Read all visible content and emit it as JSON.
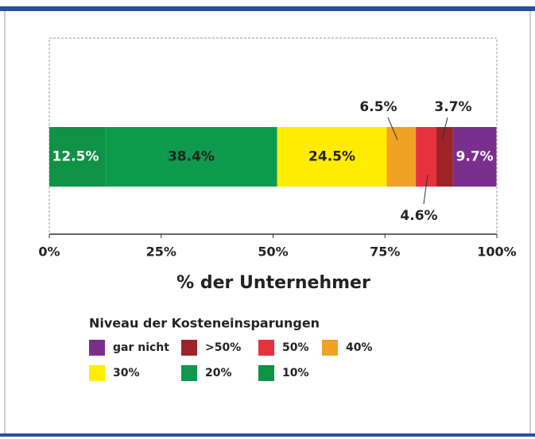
{
  "chart_data": {
    "type": "stacked_bar_horizontal",
    "xlabel": "% der Unternehmer",
    "legend_title": "Niveau der Kosteneinsparungen",
    "xlim": [
      0,
      100
    ],
    "xticks": [
      {
        "value": 0,
        "label": "0%"
      },
      {
        "value": 25,
        "label": "25%"
      },
      {
        "value": 50,
        "label": "50%"
      },
      {
        "value": 75,
        "label": "75%"
      },
      {
        "value": 100,
        "label": "100%"
      }
    ],
    "series": [
      {
        "name": "10%",
        "color": "#0f9146",
        "values": [
          12.5
        ],
        "value_labels": [
          "12.5%"
        ]
      },
      {
        "name": "20%",
        "color": "#0e9a4c",
        "values": [
          38.4
        ],
        "value_labels": [
          "38.4%"
        ]
      },
      {
        "name": "30%",
        "color": "#ffec00",
        "values": [
          24.5
        ],
        "value_labels": [
          "24.5%"
        ]
      },
      {
        "name": "40%",
        "color": "#f0a224",
        "values": [
          6.5
        ],
        "value_labels": [
          "6.5%"
        ]
      },
      {
        "name": "50%",
        "color": "#e7313c",
        "values": [
          4.6
        ],
        "value_labels": [
          "4.6%"
        ]
      },
      {
        "name": ">50%",
        "color": "#9e2329",
        "values": [
          3.7
        ],
        "value_labels": [
          "3.7%"
        ]
      },
      {
        "name": "gar nicht",
        "color": "#7a2f8e",
        "values": [
          9.7
        ],
        "value_labels": [
          "9.7%"
        ]
      }
    ]
  }
}
